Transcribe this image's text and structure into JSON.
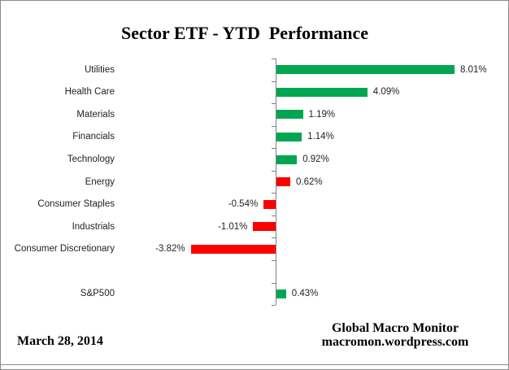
{
  "chart_data": {
    "type": "bar",
    "orientation": "horizontal",
    "title": "Sector ETF - YTD  Performance",
    "value_unit": "%",
    "xlim": [
      -4.5,
      9
    ],
    "baseline": 0,
    "grid": false,
    "legend": false,
    "colors": {
      "green": "#00A651",
      "red": "#FF0000",
      "axis": "#808080"
    },
    "rows": [
      {
        "category": "Utilities",
        "value": 8.01,
        "label": "8.01%",
        "color": "green"
      },
      {
        "category": "Health Care",
        "value": 4.09,
        "label": "4.09%",
        "color": "green"
      },
      {
        "category": "Materials",
        "value": 1.19,
        "label": "1.19%",
        "color": "green"
      },
      {
        "category": "Financials",
        "value": 1.14,
        "label": "1.14%",
        "color": "green"
      },
      {
        "category": "Technology",
        "value": 0.92,
        "label": "0.92%",
        "color": "green"
      },
      {
        "category": "Energy",
        "value": 0.62,
        "label": "0.62%",
        "color": "red"
      },
      {
        "category": "Consumer Staples",
        "value": -0.54,
        "label": "-0.54%",
        "color": "red"
      },
      {
        "category": "Industrials",
        "value": -1.01,
        "label": "-1.01%",
        "color": "red"
      },
      {
        "category": "Consumer Discretionary",
        "value": -3.82,
        "label": "-3.82%",
        "color": "red"
      },
      {
        "category": "",
        "value": null,
        "label": "",
        "color": null
      },
      {
        "category": "S&P500",
        "value": 0.43,
        "label": "0.43%",
        "color": "green"
      }
    ]
  },
  "footer": {
    "date": "March 28, 2014",
    "credit_line1": "Global Macro Monitor",
    "credit_line2": "macromon.wordpress.com"
  }
}
